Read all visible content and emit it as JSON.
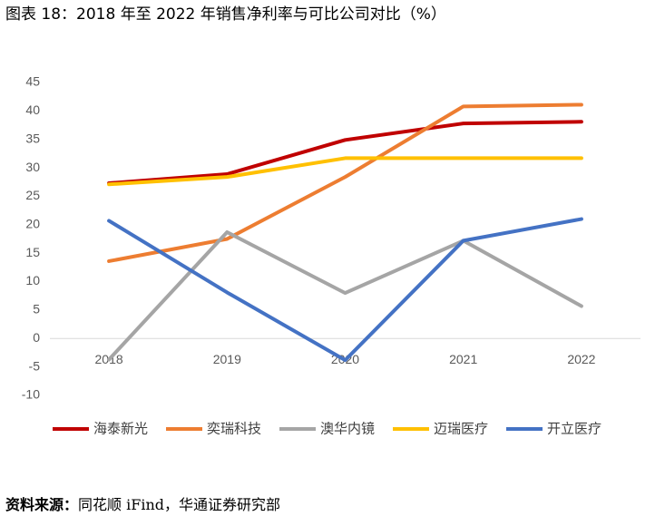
{
  "chart_data": {
    "type": "line",
    "title": "图表 18：2018 年至 2022 年销售净利率与可比公司对比（%）",
    "categories": [
      "2018",
      "2019",
      "2020",
      "2021",
      "2022"
    ],
    "series": [
      {
        "name": "海泰新光",
        "color": "#c00000",
        "values": [
          27.3,
          28.9,
          34.9,
          37.8,
          38.1
        ]
      },
      {
        "name": "奕瑞科技",
        "color": "#ed7d31",
        "values": [
          13.6,
          17.5,
          28.4,
          40.8,
          41.1
        ]
      },
      {
        "name": "澳华内镜",
        "color": "#a5a5a5",
        "values": [
          -3.7,
          18.7,
          8.0,
          17.2,
          5.7
        ]
      },
      {
        "name": "迈瑞医疗",
        "color": "#ffc000",
        "values": [
          27.1,
          28.4,
          31.7,
          31.7,
          31.7
        ]
      },
      {
        "name": "开立医疗",
        "color": "#4472c4",
        "values": [
          20.7,
          8.1,
          -3.8,
          17.2,
          21.0
        ]
      }
    ],
    "ylim": [
      -10,
      45
    ],
    "yticks": [
      -10,
      -5,
      0,
      5,
      10,
      15,
      20,
      25,
      30,
      35,
      40,
      45
    ],
    "legend": "bottom",
    "source_label": "资料来源：",
    "source_text": "同花顺 iFind，华通证券研究部"
  }
}
